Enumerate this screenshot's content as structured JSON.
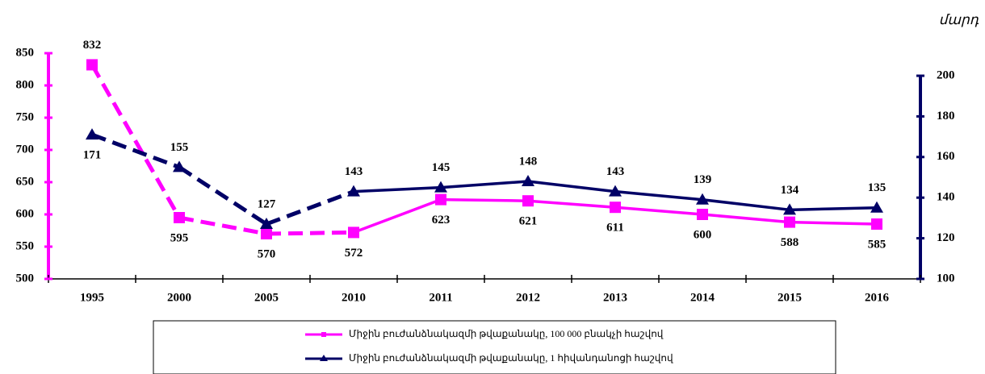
{
  "chart_data": {
    "type": "line",
    "unit_label": "մարդ",
    "categories": [
      "1995",
      "2000",
      "2005",
      "2010",
      "2011",
      "2012",
      "2013",
      "2014",
      "2015",
      "2016"
    ],
    "series": [
      {
        "name": "Միջին բուժանձնակազմի թվաքանակը, 100 000 բնակչի հաշվով",
        "color": "#ff00ff",
        "marker": "square",
        "values": [
          832,
          595,
          570,
          572,
          623,
          621,
          611,
          600,
          588,
          585
        ]
      },
      {
        "name": "Միջին բուժանձնակազմի թվաքանակը, 1 հիվանդանոցի հաշվով",
        "color": "#000066",
        "marker": "triangle",
        "axis": "y2",
        "values": [
          171,
          155,
          127,
          143,
          145,
          148,
          143,
          139,
          134,
          135
        ]
      }
    ],
    "ylim": [
      500,
      850
    ],
    "yticks": [
      500,
      550,
      600,
      650,
      700,
      750,
      800,
      850
    ],
    "y2lim": [
      100,
      200
    ],
    "y2ticks": [
      100,
      120,
      140,
      160,
      180,
      200
    ],
    "grid": false
  }
}
